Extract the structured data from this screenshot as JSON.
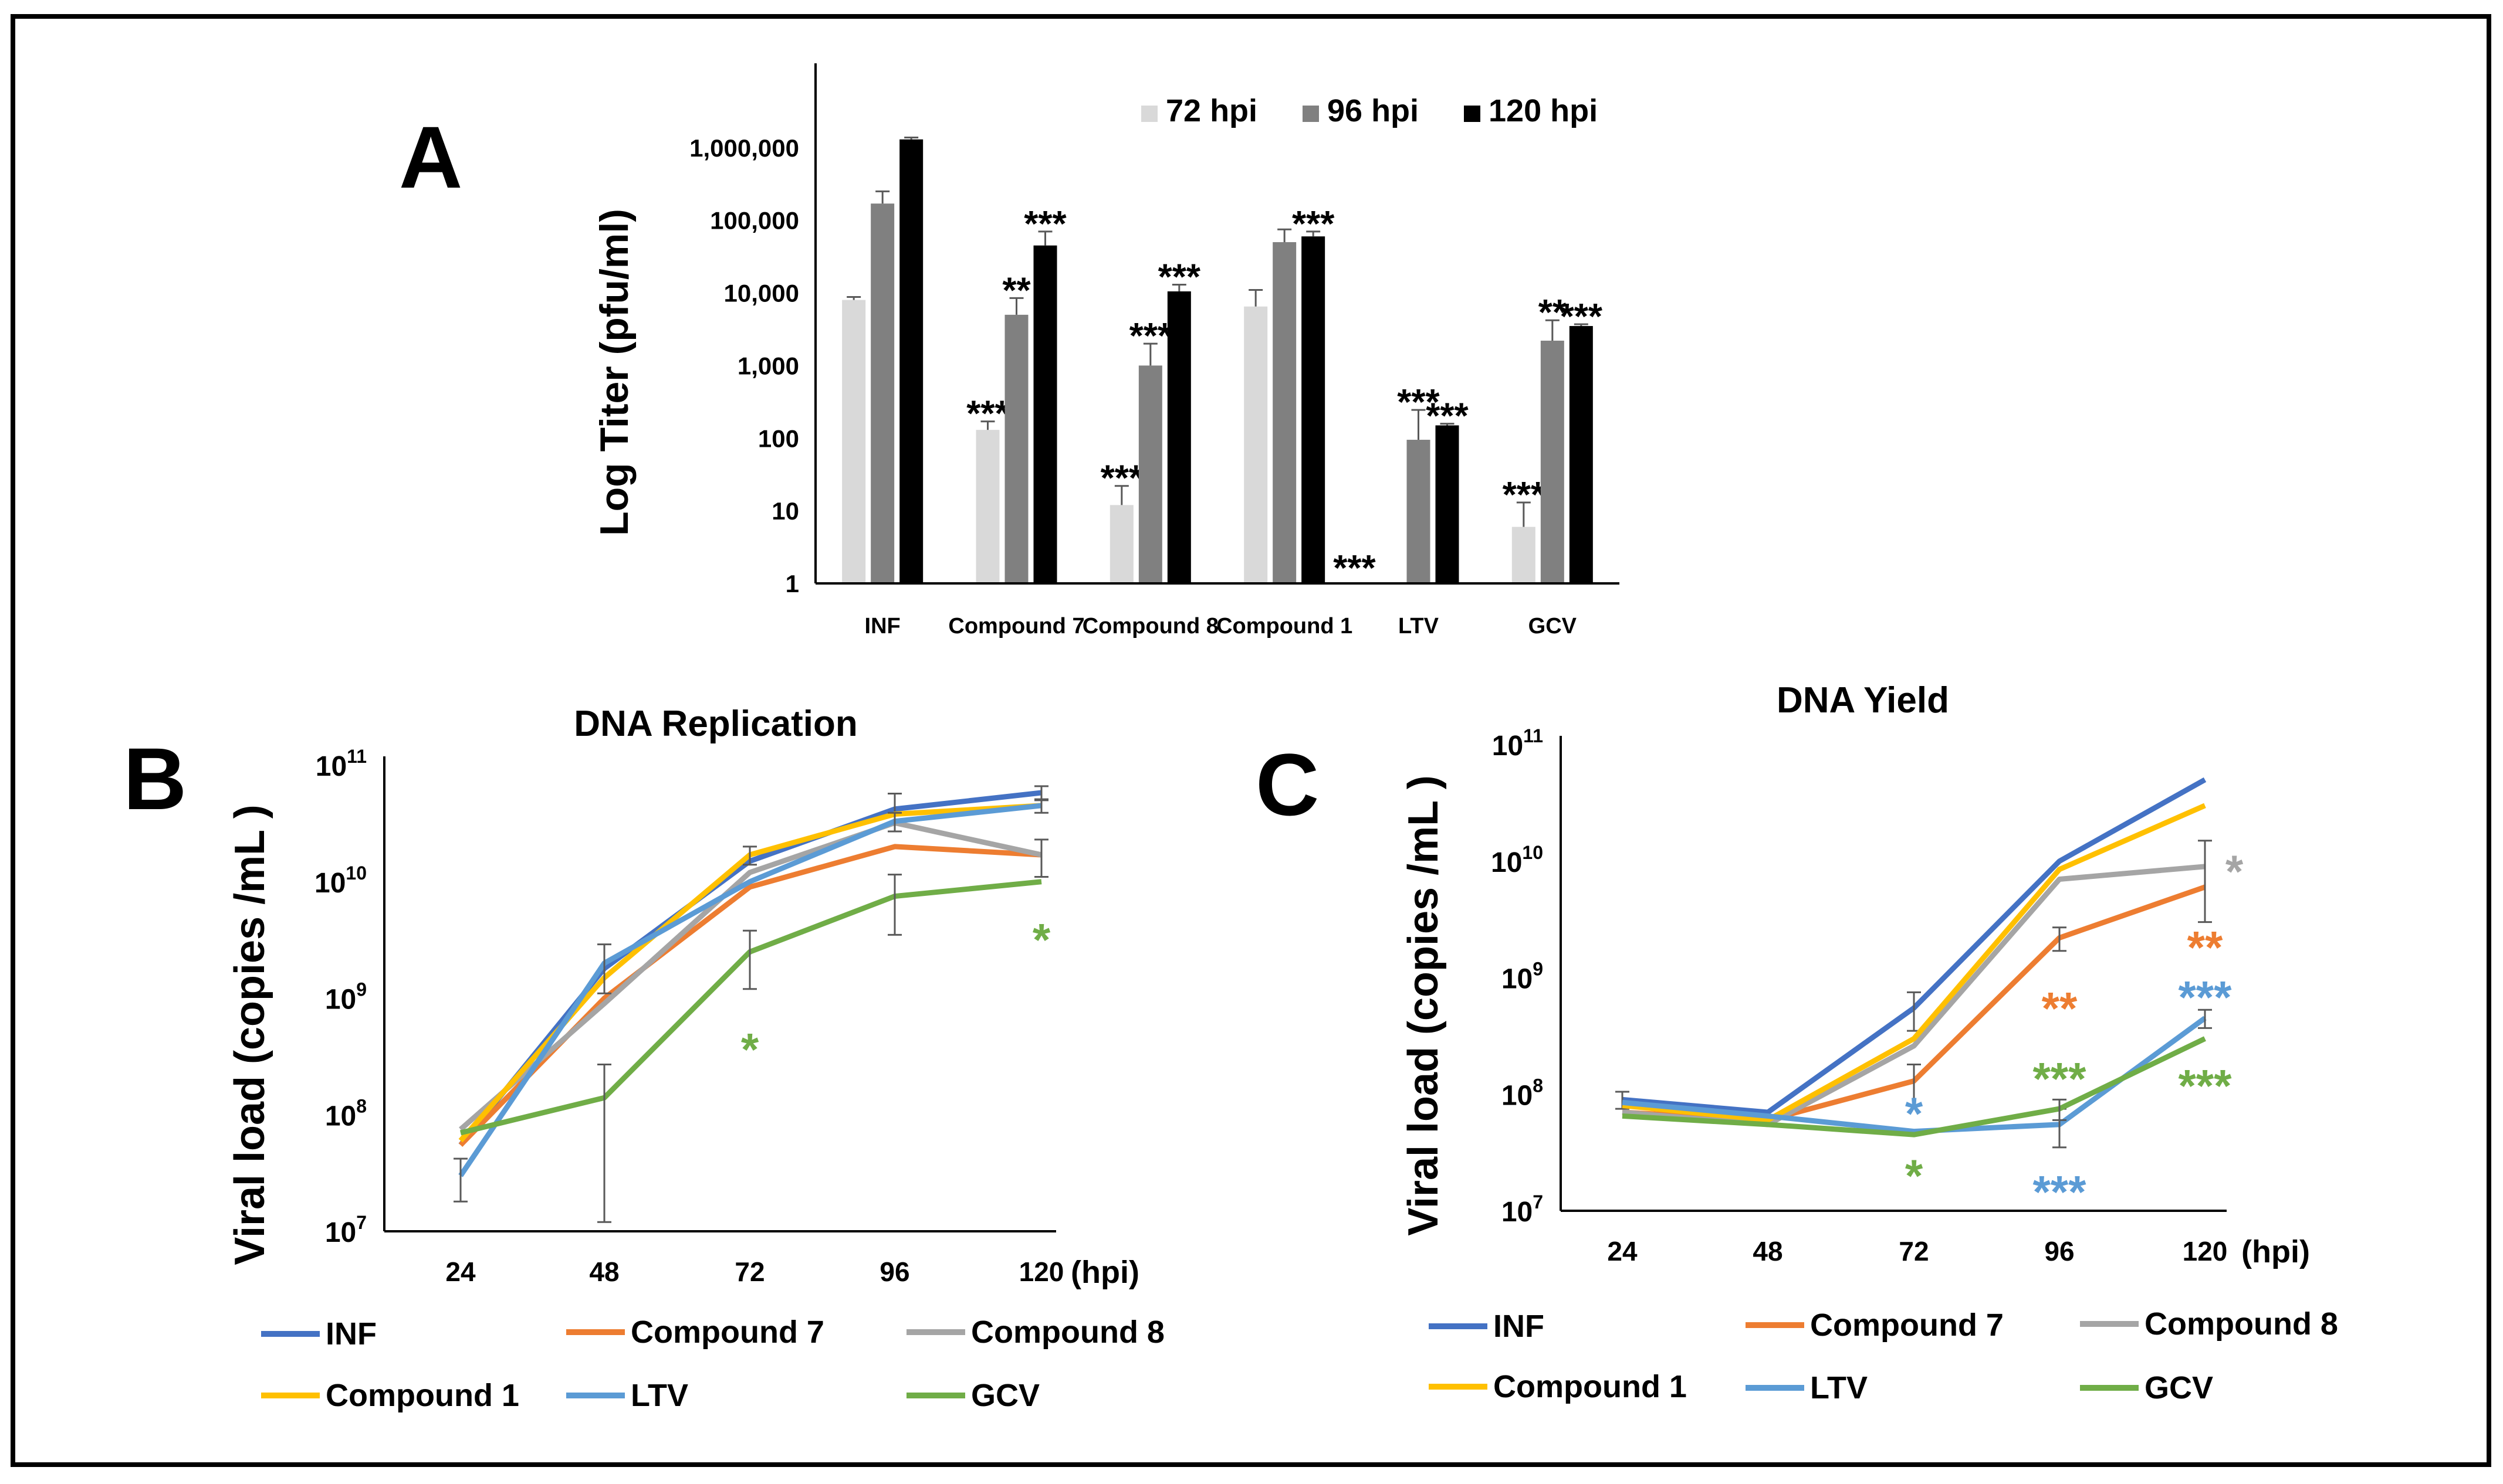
{
  "chart_data": [
    {
      "panel": "A",
      "type": "bar",
      "title": "",
      "xlabel": "",
      "ylabel": "Log  Titer (pfu/ml)",
      "yscale": "log",
      "ylim": [
        1,
        10000000
      ],
      "ytick_labels": [
        "1",
        "10",
        "100",
        "1,000",
        "10,000",
        "100,000",
        "1,000,000"
      ],
      "categories": [
        "INF",
        "Compound 7",
        "Compound 8",
        "Compound 1",
        "LTV",
        "GCV"
      ],
      "legend_position": "top",
      "colors": [
        "#d9d9d9",
        "#808080",
        "#000000"
      ],
      "series": [
        {
          "name": "72 hpi",
          "values": [
            8000,
            130,
            12,
            6500,
            1,
            6
          ],
          "errors": [
            800,
            40,
            10,
            4500,
            0,
            7
          ],
          "sig": [
            "",
            "***",
            "***",
            "",
            "***",
            "***"
          ]
        },
        {
          "name": "96 hpi",
          "values": [
            170000,
            5000,
            1000,
            50000,
            95,
            2200
          ],
          "errors": [
            80000,
            3500,
            1000,
            25000,
            150,
            2000
          ],
          "sig": [
            "",
            "**",
            "***",
            "",
            "***",
            "**"
          ]
        },
        {
          "name": "120 hpi",
          "values": [
            1300000,
            45000,
            10500,
            60000,
            150,
            3500
          ],
          "errors": [
            80000,
            25000,
            2500,
            10000,
            8,
            200
          ],
          "sig": [
            "",
            "***",
            "***",
            "***",
            "***",
            "***"
          ]
        }
      ]
    },
    {
      "panel": "B",
      "type": "line",
      "title": "DNA Replication",
      "xlabel": "(hpi)",
      "ylabel": "Viral load (copies /mL )",
      "yscale": "log",
      "ylim": [
        10000000,
        100000000000
      ],
      "ytick_exponents": [
        "7",
        "8",
        "9",
        "10",
        "11"
      ],
      "ytick_base": "10",
      "x": [
        "24",
        "48",
        "72",
        "96",
        "120"
      ],
      "series": [
        {
          "name": "INF",
          "color": "#4472c4",
          "values": [
            55000000,
            1800000000,
            15000000000,
            42000000000,
            58000000000
          ],
          "errors": [
            0,
            0,
            0,
            15000000000,
            8000000000
          ]
        },
        {
          "name": "Compound 7",
          "color": "#ed7d31",
          "values": [
            55000000,
            1000000000,
            9000000000,
            20000000000,
            17000000000
          ],
          "errors": [
            0,
            0,
            0,
            0,
            0
          ]
        },
        {
          "name": "Compound 8",
          "color": "#a5a5a5",
          "values": [
            75000000,
            900000000,
            12000000000,
            32000000000,
            17000000000
          ],
          "errors": [
            0,
            0,
            0,
            0,
            6000000000
          ]
        },
        {
          "name": "Compound 1",
          "color": "#ffc000",
          "values": [
            60000000,
            1500000000,
            17000000000,
            38000000000,
            45000000000
          ],
          "errors": [
            0,
            0,
            3000000000,
            0,
            0
          ]
        },
        {
          "name": "LTV",
          "color": "#5b9bd5",
          "values": [
            30000000,
            2000000000,
            10000000000,
            33000000000,
            45000000000
          ],
          "errors": [
            12000000,
            900000000,
            0,
            6000000000,
            6000000000
          ]
        },
        {
          "name": "GCV",
          "color": "#70ad47",
          "values": [
            70000000,
            140000000,
            2500000000,
            7500000000,
            10000000000
          ],
          "errors": [
            0,
            130000000,
            1300000000,
            4000000000,
            0
          ]
        }
      ],
      "annotations": [
        {
          "text": "*",
          "color": "#70ad47",
          "x": "72",
          "y": 400000000
        },
        {
          "text": "*",
          "color": "#70ad47",
          "x": "120",
          "y": 3500000000
        }
      ]
    },
    {
      "panel": "C",
      "type": "line",
      "title": "DNA Yield",
      "xlabel": "(hpi)",
      "ylabel": "Viral load (copies /mL )",
      "yscale": "log",
      "ylim": [
        10000000,
        100000000000
      ],
      "ytick_exponents": [
        "7",
        "8",
        "9",
        "10",
        "11"
      ],
      "ytick_base": "10",
      "x": [
        "24",
        "48",
        "72",
        "96",
        "120"
      ],
      "series": [
        {
          "name": "INF",
          "color": "#4472c4",
          "values": [
            90000000,
            70000000,
            550000000,
            10000000000,
            50000000000
          ],
          "errors": [
            15000000,
            0,
            200000000,
            0,
            0
          ]
        },
        {
          "name": "Compound 7",
          "color": "#ed7d31",
          "values": [
            70000000,
            60000000,
            130000000,
            2200000000,
            6000000000
          ],
          "errors": [
            0,
            0,
            50000000,
            500000000,
            0
          ]
        },
        {
          "name": "Compound 8",
          "color": "#a5a5a5",
          "values": [
            70000000,
            55000000,
            260000000,
            7000000000,
            9000000000
          ],
          "errors": [
            0,
            0,
            0,
            0,
            6000000000
          ]
        },
        {
          "name": "Compound 1",
          "color": "#ffc000",
          "values": [
            80000000,
            60000000,
            300000000,
            8500000000,
            30000000000
          ],
          "errors": [
            0,
            0,
            0,
            0,
            0
          ]
        },
        {
          "name": "LTV",
          "color": "#5b9bd5",
          "values": [
            85000000,
            65000000,
            48000000,
            55000000,
            450000000
          ],
          "errors": [
            0,
            0,
            0,
            20000000,
            80000000
          ]
        },
        {
          "name": "GCV",
          "color": "#70ad47",
          "values": [
            65000000,
            55000000,
            45000000,
            75000000,
            300000000
          ],
          "errors": [
            0,
            0,
            0,
            15000000,
            0
          ]
        }
      ],
      "annotations": [
        {
          "text": "*",
          "color": "#a5a5a5",
          "x": "120",
          "y": 9000000000
        },
        {
          "text": "**",
          "color": "#ed7d31",
          "x": "120",
          "y": 2000000000
        },
        {
          "text": "**",
          "color": "#ed7d31",
          "x": "96",
          "y": 600000000
        },
        {
          "text": "***",
          "color": "#5b9bd5",
          "x": "120",
          "y": 750000000
        },
        {
          "text": "***",
          "color": "#70ad47",
          "x": "96",
          "y": 150000000
        },
        {
          "text": "***",
          "color": "#70ad47",
          "x": "120",
          "y": 130000000
        },
        {
          "text": "*",
          "color": "#5b9bd5",
          "x": "72",
          "y": 75000000
        },
        {
          "text": "*",
          "color": "#70ad47",
          "x": "72",
          "y": 22000000
        },
        {
          "text": "***",
          "color": "#5b9bd5",
          "x": "96",
          "y": 16000000
        }
      ]
    }
  ]
}
